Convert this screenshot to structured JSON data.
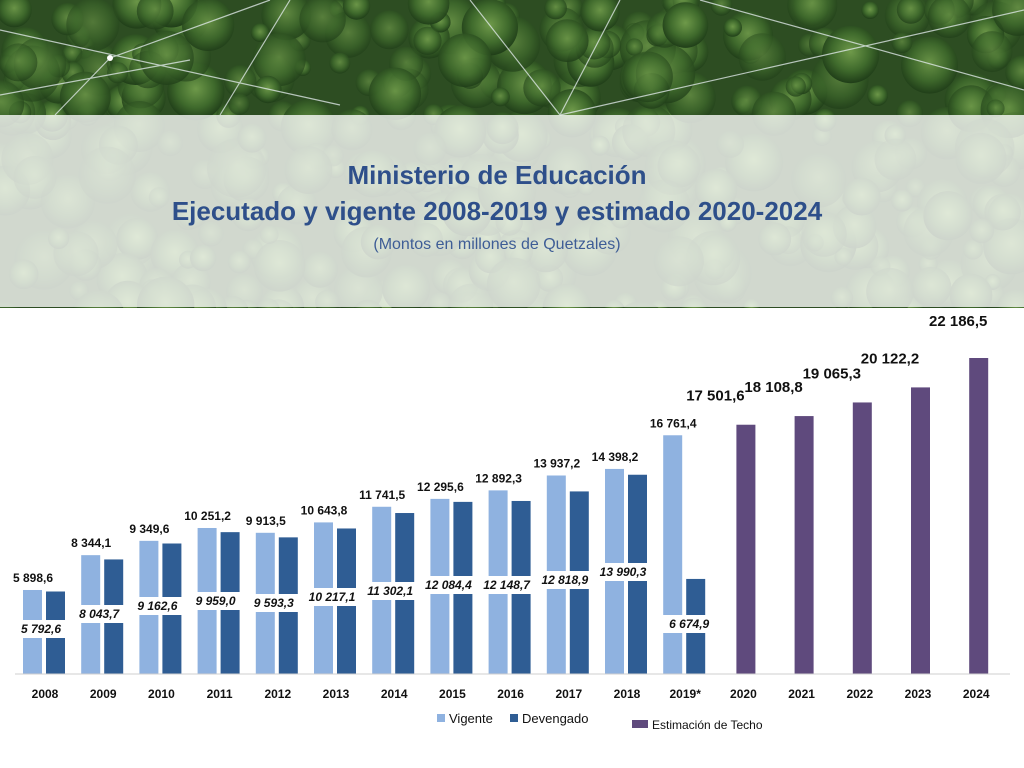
{
  "header": {
    "title_line1": "Ministerio de Educación",
    "title_line2": "Ejecutado y vigente 2008-2019 y estimado 2020-2024",
    "subtitle": "(Montos en millones de Quetzales)"
  },
  "colors": {
    "vigente": "#8fb2e0",
    "devengado": "#2f5d94",
    "techo": "#5f4a7d",
    "title": "#2e4f8a"
  },
  "chart_data": {
    "type": "bar",
    "categories": [
      "2008",
      "2009",
      "2010",
      "2011",
      "2012",
      "2013",
      "2014",
      "2015",
      "2016",
      "2017",
      "2018",
      "2019*",
      "2020",
      "2021",
      "2022",
      "2023",
      "2024"
    ],
    "series": [
      {
        "name": "Vigente",
        "values": [
          5898.6,
          8344.1,
          9349.6,
          10251.2,
          9913.5,
          10643.8,
          11741.5,
          12295.6,
          12892.3,
          13937.2,
          14398.2,
          16761.4,
          null,
          null,
          null,
          null,
          null
        ],
        "labels": [
          "5 898,6",
          "8 344,1",
          "9 349,6",
          "10 251,2",
          "9 913,5",
          "10 643,8",
          "11 741,5",
          "12 295,6",
          "12 892,3",
          "13 937,2",
          "14 398,2",
          "16 761,4",
          null,
          null,
          null,
          null,
          null
        ]
      },
      {
        "name": "Devengado",
        "values": [
          5792.6,
          8043.7,
          9162.6,
          9959.0,
          9593.3,
          10217.1,
          11302.1,
          12084.4,
          12148.7,
          12818.9,
          13990.3,
          6674.9,
          null,
          null,
          null,
          null,
          null
        ],
        "labels": [
          "5 792,6",
          "8 043,7",
          "9 162,6",
          "9 959,0",
          "9 593,3",
          "10 217,1",
          "11 302,1",
          "12 084,4",
          "12 148,7",
          "12 818,9",
          "13 990,3",
          "6 674,9",
          null,
          null,
          null,
          null,
          null
        ]
      },
      {
        "name": "Estimación de Techo",
        "values": [
          null,
          null,
          null,
          null,
          null,
          null,
          null,
          null,
          null,
          null,
          null,
          null,
          17501.6,
          18108.8,
          19065.3,
          20122.2,
          22186.5
        ],
        "labels": [
          null,
          null,
          null,
          null,
          null,
          null,
          null,
          null,
          null,
          null,
          null,
          null,
          "17 501,6",
          "18 108,8",
          "19 065,3",
          "20 122,2",
          "22 186,5"
        ]
      }
    ],
    "xlabel": "",
    "ylabel": "",
    "ylim": [
      0,
      23000
    ],
    "grid": false,
    "legend_position": "bottom"
  }
}
